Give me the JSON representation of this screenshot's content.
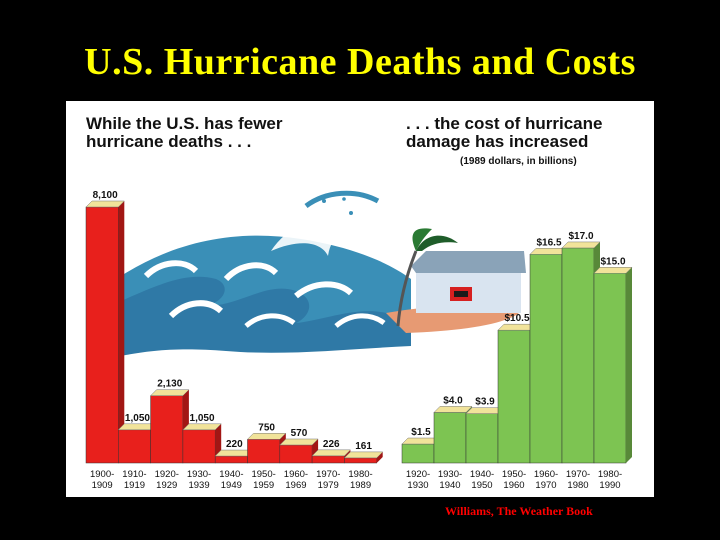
{
  "title": "U.S. Hurricane Deaths and Costs",
  "left_heading": "While the U.S. has fewer hurricane deaths . . .",
  "right_heading": ". . . the cost of hurricane damage has increased",
  "right_subheading": "(1989 dollars, in billions)",
  "credit": "Williams, The Weather Book",
  "colors": {
    "background": "#000000",
    "title": "#ffff00",
    "deaths_bar": "#e8201c",
    "cost_bar": "#7dc452",
    "bar_top": "#f1e39a",
    "credit": "#ff0000"
  },
  "chart_data": [
    {
      "type": "bar",
      "title": "While the U.S. has fewer hurricane deaths . . .",
      "categories": [
        [
          "1900-",
          "1909"
        ],
        [
          "1910-",
          "1919"
        ],
        [
          "1920-",
          "1929"
        ],
        [
          "1930-",
          "1939"
        ],
        [
          "1940-",
          "1949"
        ],
        [
          "1950-",
          "1959"
        ],
        [
          "1960-",
          "1969"
        ],
        [
          "1970-",
          "1979"
        ],
        [
          "1980-",
          "1989"
        ]
      ],
      "values": [
        8100,
        1050,
        2130,
        1050,
        220,
        750,
        570,
        226,
        161
      ],
      "labels": [
        "8,100",
        "1,050",
        "2,130",
        "1,050",
        "220",
        "750",
        "570",
        "226",
        "161"
      ]
    },
    {
      "type": "bar",
      "title": ". . . the cost of hurricane damage has increased",
      "subtitle": "(1989 dollars, in billions)",
      "categories": [
        [
          "1920-",
          "1930"
        ],
        [
          "1930-",
          "1940"
        ],
        [
          "1940-",
          "1950"
        ],
        [
          "1950-",
          "1960"
        ],
        [
          "1960-",
          "1970"
        ],
        [
          "1970-",
          "1980"
        ],
        [
          "1980-",
          "1990"
        ]
      ],
      "values": [
        1.5,
        4.0,
        3.9,
        10.5,
        16.5,
        17.0,
        15.0
      ],
      "labels": [
        "$1.5",
        "$4.0",
        "$3.9",
        "$10.5",
        "$16.5",
        "$17.0",
        "$15.0"
      ]
    }
  ]
}
